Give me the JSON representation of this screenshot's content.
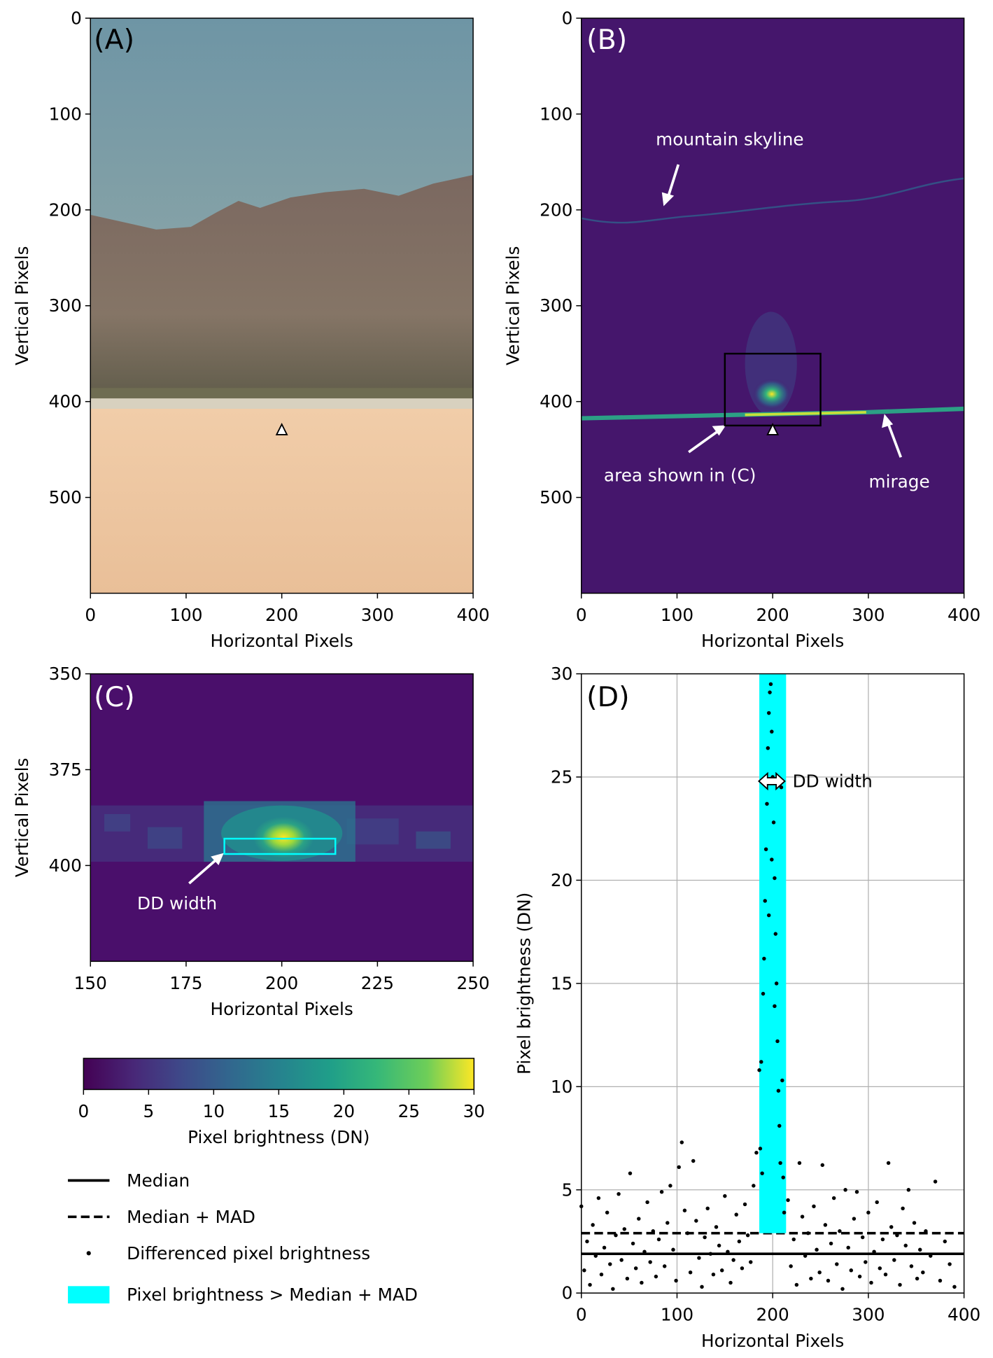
{
  "chart_data": [
    {
      "type": "image",
      "panel_label": "(A)",
      "xlabel": "Horizontal Pixels",
      "ylabel": "Vertical Pixels",
      "xlim": [
        0,
        400
      ],
      "ylim": [
        600,
        0
      ],
      "xticks": [
        0,
        100,
        200,
        300,
        400
      ],
      "yticks": [
        0,
        100,
        200,
        300,
        400,
        500
      ],
      "marker": [
        200,
        430
      ]
    },
    {
      "type": "image",
      "panel_label": "(B)",
      "xlabel": "Horizontal Pixels",
      "ylabel": "Vertical Pixels",
      "xlim": [
        0,
        400
      ],
      "ylim": [
        600,
        0
      ],
      "xticks": [
        0,
        100,
        200,
        300,
        400
      ],
      "yticks": [
        0,
        100,
        200,
        300,
        400,
        500
      ],
      "marker": [
        200,
        430
      ],
      "box": {
        "x": [
          150,
          250
        ],
        "y": [
          350,
          425
        ]
      },
      "annotations": [
        "mountain skyline",
        "area shown in (C)",
        "mirage"
      ]
    },
    {
      "type": "image",
      "panel_label": "(C)",
      "xlabel": "Horizontal Pixels",
      "ylabel": "Vertical Pixels",
      "xlim": [
        150,
        250
      ],
      "ylim": [
        425,
        350
      ],
      "xticks": [
        150,
        175,
        200,
        225,
        250
      ],
      "yticks": [
        350,
        375,
        400
      ],
      "box": {
        "x": [
          185,
          214
        ],
        "y": [
          393,
          397
        ]
      },
      "annotations": [
        "DD width"
      ]
    },
    {
      "type": "colorbar",
      "xlabel": "Pixel brightness (DN)",
      "xlim": [
        0,
        30
      ],
      "xticks": [
        0,
        5,
        10,
        15,
        20,
        25,
        30
      ]
    },
    {
      "type": "scatter",
      "panel_label": "(D)",
      "xlabel": "Horizontal Pixels",
      "ylabel": "Pixel brightness (DN)",
      "xlim": [
        0,
        400
      ],
      "ylim": [
        0,
        30
      ],
      "xticks": [
        0,
        100,
        200,
        300,
        400
      ],
      "yticks": [
        0,
        5,
        10,
        15,
        20,
        25,
        30
      ],
      "grid": true,
      "annotations": [
        "DD width"
      ],
      "span": {
        "name": "Pixel brightness > Median + MAD",
        "color": "#00ffff",
        "x": [
          186,
          214
        ],
        "y": [
          2.9,
          30
        ]
      },
      "lines": [
        {
          "name": "Median",
          "value": 1.9,
          "style": "solid",
          "color": "#000000"
        },
        {
          "name": "Median + MAD",
          "value": 2.9,
          "style": "dashed",
          "color": "#000000"
        }
      ],
      "x": [
        0,
        3,
        6,
        9,
        12,
        15,
        18,
        21,
        24,
        27,
        30,
        33,
        36,
        39,
        42,
        45,
        48,
        51,
        54,
        57,
        60,
        63,
        66,
        69,
        72,
        75,
        78,
        81,
        84,
        87,
        90,
        93,
        96,
        99,
        102,
        105,
        108,
        111,
        114,
        117,
        120,
        123,
        126,
        129,
        132,
        135,
        138,
        141,
        144,
        147,
        150,
        153,
        156,
        159,
        162,
        165,
        168,
        171,
        174,
        177,
        180,
        183,
        186,
        188,
        190,
        191,
        192,
        193,
        194,
        195,
        196,
        197,
        198,
        199,
        200,
        201,
        202,
        203,
        204,
        205,
        206,
        207,
        208,
        209,
        210,
        211,
        212,
        189,
        187,
        196,
        202,
        199,
        216,
        219,
        222,
        225,
        228,
        231,
        234,
        237,
        240,
        243,
        246,
        249,
        252,
        255,
        258,
        261,
        264,
        267,
        270,
        273,
        276,
        279,
        282,
        285,
        288,
        291,
        294,
        297,
        300,
        303,
        306,
        309,
        312,
        315,
        318,
        321,
        324,
        327,
        330,
        333,
        336,
        339,
        342,
        345,
        348,
        351,
        354,
        357,
        360,
        365,
        370,
        375,
        380,
        385,
        390
      ],
      "series": [
        {
          "name": "Differenced pixel brightness",
          "color": "#000000",
          "values": [
            4.2,
            1.1,
            2.5,
            0.4,
            3.3,
            1.8,
            4.6,
            0.9,
            2.2,
            3.9,
            1.4,
            0.2,
            2.8,
            4.8,
            1.6,
            3.1,
            0.7,
            5.8,
            2.4,
            1.2,
            3.6,
            0.5,
            2.0,
            4.4,
            1.5,
            3.0,
            0.8,
            2.6,
            4.9,
            1.3,
            3.4,
            5.2,
            2.1,
            0.6,
            6.1,
            7.3,
            4.0,
            2.9,
            1.0,
            6.4,
            3.5,
            1.7,
            0.3,
            2.7,
            4.1,
            1.9,
            0.9,
            3.2,
            2.3,
            1.1,
            4.7,
            2.0,
            0.5,
            1.6,
            3.8,
            2.5,
            1.2,
            4.3,
            2.8,
            1.5,
            5.2,
            6.8,
            10.8,
            11.2,
            14.5,
            16.2,
            19.0,
            21.5,
            23.7,
            26.4,
            28.1,
            29.1,
            29.5,
            27.2,
            25.0,
            22.8,
            20.1,
            17.4,
            15.0,
            12.2,
            9.8,
            8.1,
            6.3,
            24.5,
            10.3,
            5.6,
            3.9,
            5.8,
            7.0,
            18.3,
            13.9,
            21.0,
            4.5,
            1.3,
            2.6,
            0.4,
            6.3,
            3.7,
            1.8,
            2.9,
            0.7,
            4.2,
            2.1,
            1.0,
            6.2,
            3.3,
            0.6,
            2.4,
            4.6,
            1.4,
            3.0,
            0.2,
            5.0,
            2.2,
            1.1,
            3.6,
            4.9,
            0.8,
            2.7,
            1.5,
            3.9,
            0.5,
            2.0,
            4.4,
            1.2,
            2.6,
            0.9,
            6.3,
            3.2,
            1.6,
            2.8,
            0.4,
            4.1,
            2.3,
            5.0,
            1.3,
            3.4,
            0.7,
            2.1,
            1.0,
            3.0,
            1.8,
            5.4,
            0.6,
            2.5,
            1.4,
            0.3
          ]
        }
      ]
    }
  ]
}
